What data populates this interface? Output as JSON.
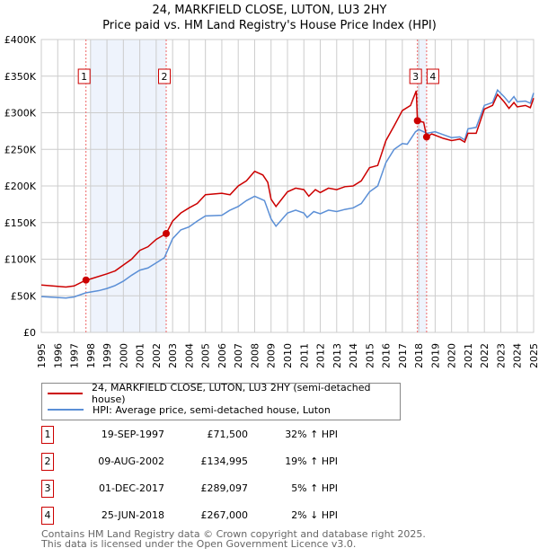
{
  "chart_data": {
    "type": "line",
    "title": "24, MARKFIELD CLOSE, LUTON, LU3 2HY",
    "subtitle": "Price paid vs. HM Land Registry's House Price Index (HPI)",
    "xlim": [
      1995,
      2025
    ],
    "ylim": [
      0,
      400000
    ],
    "y_ticks": [
      {
        "v": 0,
        "label": "£0"
      },
      {
        "v": 50000,
        "label": "£50K"
      },
      {
        "v": 100000,
        "label": "£100K"
      },
      {
        "v": 150000,
        "label": "£150K"
      },
      {
        "v": 200000,
        "label": "£200K"
      },
      {
        "v": 250000,
        "label": "£250K"
      },
      {
        "v": 300000,
        "label": "£300K"
      },
      {
        "v": 350000,
        "label": "£350K"
      },
      {
        "v": 400000,
        "label": "£400K"
      }
    ],
    "x_ticks": [
      "1995",
      "1996",
      "1997",
      "1998",
      "1999",
      "2000",
      "2001",
      "2002",
      "2003",
      "2004",
      "2005",
      "2006",
      "2007",
      "2008",
      "2009",
      "2010",
      "2011",
      "2012",
      "2013",
      "2014",
      "2015",
      "2016",
      "2017",
      "2018",
      "2019",
      "2020",
      "2021",
      "2022",
      "2023",
      "2024",
      "2025"
    ],
    "grid": true,
    "shaded_ranges": [
      [
        1998.0,
        2002.61
      ],
      [
        2017.92,
        2018.48
      ]
    ],
    "series": [
      {
        "name": "24, MARKFIELD CLOSE, LUTON, LU3 2HY (semi-detached house)",
        "color": "#cc0000",
        "x": [
          1995,
          1996.5,
          1997,
          1997.72,
          1998,
          1999,
          1999.5,
          2000,
          2000.5,
          2001,
          2001.5,
          2002,
          2002.61,
          2003,
          2003.5,
          2004,
          2004.5,
          2005,
          2006,
          2006.5,
          2007,
          2007.5,
          2008,
          2008.5,
          2008.8,
          2009,
          2009.3,
          2010,
          2010.5,
          2011,
          2011.3,
          2011.7,
          2012,
          2012.5,
          2013,
          2013.5,
          2014,
          2014.5,
          2015,
          2015.5,
          2016,
          2016.5,
          2017,
          2017.5,
          2017.85,
          2017.92,
          2018.3,
          2018.48,
          2018.8,
          2019.5,
          2020,
          2020.5,
          2020.8,
          2021,
          2021.5,
          2022,
          2022.5,
          2022.8,
          2023.2,
          2023.5,
          2023.8,
          2024,
          2024.5,
          2024.8,
          2025
        ],
        "y": [
          64700,
          62000,
          63500,
          71500,
          73000,
          80000,
          84000,
          92000,
          100000,
          112000,
          117000,
          127000,
          134995,
          152000,
          163000,
          170000,
          176000,
          188000,
          190000,
          188000,
          200000,
          207000,
          220000,
          215000,
          205000,
          182000,
          172000,
          192000,
          197000,
          195000,
          186000,
          195000,
          191000,
          197000,
          195000,
          199000,
          200000,
          207000,
          225000,
          228000,
          262000,
          282000,
          303000,
          310000,
          330000,
          289097,
          287000,
          267000,
          271000,
          265000,
          262000,
          264000,
          260000,
          272000,
          272000,
          305000,
          310000,
          325000,
          315000,
          306000,
          314000,
          308000,
          310000,
          307000,
          320000
        ]
      },
      {
        "name": "HPI: Average price, semi-detached house, Luton",
        "color": "#5b8fd6",
        "x": [
          1995,
          1996.5,
          1997,
          1997.7,
          1998.5,
          1999,
          1999.5,
          2000,
          2000.5,
          2001,
          2001.5,
          2002,
          2002.5,
          2003,
          2003.5,
          2004,
          2004.5,
          2005,
          2006,
          2006.5,
          2007,
          2007.5,
          2008,
          2008.6,
          2009,
          2009.3,
          2010,
          2010.5,
          2011,
          2011.2,
          2011.6,
          2012,
          2012.5,
          2013,
          2013.5,
          2014,
          2014.5,
          2015,
          2015.5,
          2016,
          2016.5,
          2017,
          2017.3,
          2017.8,
          2018,
          2018.5,
          2019,
          2019.5,
          2020,
          2020.5,
          2020.8,
          2021,
          2021.5,
          2022,
          2022.5,
          2022.8,
          2023.2,
          2023.5,
          2023.8,
          2024,
          2024.5,
          2024.8,
          2025
        ],
        "y": [
          49000,
          47000,
          48500,
          54000,
          57000,
          60000,
          64000,
          70000,
          78000,
          85000,
          88000,
          95000,
          102000,
          128000,
          140000,
          144000,
          152000,
          159000,
          160000,
          167000,
          172000,
          180000,
          186000,
          180000,
          155000,
          145000,
          163000,
          167000,
          163000,
          157000,
          165000,
          162000,
          167000,
          165000,
          168000,
          170000,
          176000,
          192000,
          200000,
          232000,
          250000,
          258000,
          257000,
          274000,
          277000,
          272000,
          274000,
          270000,
          266000,
          267000,
          263000,
          278000,
          280000,
          310000,
          314000,
          331000,
          322000,
          314000,
          322000,
          315000,
          316000,
          313000,
          327000
        ]
      }
    ],
    "sales": [
      {
        "n": "1",
        "x": 1997.72,
        "y": 71500,
        "date": "19-SEP-1997",
        "price": "£71,500",
        "hpi": "32% ↑ HPI"
      },
      {
        "n": "2",
        "x": 2002.61,
        "y": 134995,
        "date": "09-AUG-2002",
        "price": "£134,995",
        "hpi": "19% ↑ HPI"
      },
      {
        "n": "3",
        "x": 2017.92,
        "y": 289097,
        "date": "01-DEC-2017",
        "price": "£289,097",
        "hpi": "5% ↑ HPI"
      },
      {
        "n": "4",
        "x": 2018.48,
        "y": 267000,
        "date": "25-JUN-2018",
        "price": "£267,000",
        "hpi": "2% ↓ HPI"
      }
    ]
  },
  "legend": {
    "red": "24, MARKFIELD CLOSE, LUTON, LU3 2HY (semi-detached house)",
    "blue": "HPI: Average price, semi-detached house, Luton"
  },
  "footer": {
    "line1": "Contains HM Land Registry data © Crown copyright and database right 2025.",
    "line2": "This data is licensed under the Open Government Licence v3.0."
  }
}
